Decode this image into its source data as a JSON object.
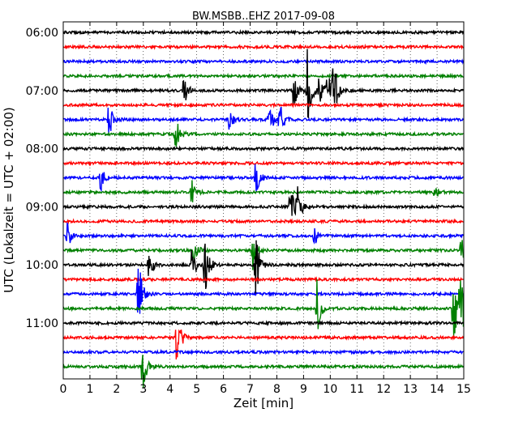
{
  "chart_data": {
    "type": "line",
    "title": "BW.MSBB..EHZ 2017-09-08",
    "xlabel": "Zeit  [min]",
    "ylabel": "UTC (Lokalzeit = UTC + 02:00)",
    "xlim": [
      0,
      15
    ],
    "x_ticks": [
      "0",
      "1",
      "2",
      "3",
      "4",
      "5",
      "6",
      "7",
      "8",
      "9",
      "10",
      "11",
      "12",
      "13",
      "14",
      "15"
    ],
    "y_ticks": [
      {
        "label": "06:00",
        "trace": 0
      },
      {
        "label": "07:00",
        "trace": 4
      },
      {
        "label": "08:00",
        "trace": 8
      },
      {
        "label": "09:00",
        "trace": 12
      },
      {
        "label": "10:00",
        "trace": 16
      },
      {
        "label": "11:00",
        "trace": 20
      }
    ],
    "grid": "vertical dotted",
    "trace_colors": [
      "#000000",
      "#ff0000",
      "#0000ff",
      "#008000"
    ],
    "trace_count": 24,
    "traces": [
      {
        "start": "06:00",
        "events": []
      },
      {
        "start": "06:15",
        "events": []
      },
      {
        "start": "06:30",
        "events": []
      },
      {
        "start": "06:45",
        "events": []
      },
      {
        "start": "07:00",
        "events": [
          [
            4.5,
            0.4
          ],
          [
            8.6,
            0.5
          ],
          [
            9.15,
            1.0
          ],
          [
            9.6,
            0.5
          ],
          [
            9.9,
            0.4
          ],
          [
            10.1,
            0.9
          ]
        ]
      },
      {
        "start": "07:15",
        "events": []
      },
      {
        "start": "07:30",
        "events": [
          [
            1.7,
            0.5
          ],
          [
            6.2,
            0.3
          ],
          [
            7.7,
            0.4
          ],
          [
            8.1,
            0.6
          ]
        ]
      },
      {
        "start": "07:45",
        "events": [
          [
            4.2,
            0.5
          ]
        ]
      },
      {
        "start": "08:00",
        "events": []
      },
      {
        "start": "08:15",
        "events": []
      },
      {
        "start": "08:30",
        "events": [
          [
            1.4,
            0.3
          ],
          [
            7.2,
            0.5
          ]
        ]
      },
      {
        "start": "08:45",
        "events": [
          [
            4.8,
            0.3
          ],
          [
            13.9,
            0.2
          ]
        ]
      },
      {
        "start": "09:00",
        "events": [
          [
            8.5,
            0.5
          ],
          [
            8.75,
            0.5
          ]
        ]
      },
      {
        "start": "09:15",
        "events": []
      },
      {
        "start": "09:30",
        "events": [
          [
            0.15,
            0.3
          ],
          [
            9.4,
            0.2
          ]
        ]
      },
      {
        "start": "09:45",
        "events": [
          [
            4.9,
            0.3
          ],
          [
            7.1,
            0.4
          ],
          [
            14.9,
            0.3
          ]
        ]
      },
      {
        "start": "10:00",
        "events": [
          [
            3.2,
            0.4
          ],
          [
            4.8,
            0.4
          ],
          [
            5.3,
            0.8
          ],
          [
            7.2,
            0.9
          ]
        ]
      },
      {
        "start": "10:15",
        "events": []
      },
      {
        "start": "10:30",
        "events": [
          [
            2.8,
            0.9
          ]
        ]
      },
      {
        "start": "10:45",
        "events": [
          [
            9.5,
            0.6
          ],
          [
            14.6,
            1.0
          ],
          [
            14.85,
            1.0
          ]
        ]
      },
      {
        "start": "11:00",
        "events": []
      },
      {
        "start": "11:15",
        "events": [
          [
            4.25,
            0.7
          ]
        ]
      },
      {
        "start": "11:30",
        "events": []
      },
      {
        "start": "11:45",
        "events": [
          [
            2.95,
            0.7
          ]
        ]
      }
    ]
  }
}
